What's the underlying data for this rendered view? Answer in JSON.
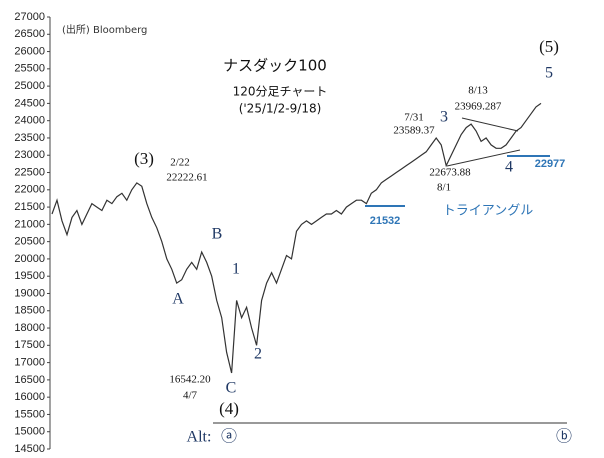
{
  "chart_data": {
    "type": "line",
    "title": "ナスダック100",
    "subtitle": "120分足チャート",
    "period": "('25/1/2-9/18)",
    "source": "(出所) Bloomberg",
    "color": "#333333",
    "values": [
      21300,
      21700,
      21100,
      20700,
      21200,
      21400,
      21000,
      21300,
      21600,
      21500,
      21400,
      21700,
      21600,
      21800,
      21900,
      21700,
      22000,
      22200,
      22100,
      21600,
      21200,
      20900,
      20500,
      20000,
      19700,
      19300,
      19400,
      19700,
      19900,
      19700,
      20200,
      19900,
      19500,
      18800,
      18300,
      17300,
      16700,
      18800,
      18300,
      18600,
      18000,
      17500,
      18800,
      19300,
      19600,
      19300,
      19700,
      20100,
      20000,
      20800,
      21000,
      21100,
      21000,
      21100,
      21200,
      21300,
      21300,
      21400,
      21300,
      21500,
      21600,
      21700,
      21700,
      21600,
      21900,
      22000,
      22200,
      22300,
      22400,
      22500,
      22600,
      22700,
      22800,
      22900,
      23000,
      23100,
      23300,
      23500,
      23300,
      22700,
      23000,
      23300,
      23600,
      23800,
      23900,
      23700,
      23400,
      23500,
      23300,
      23200,
      23200,
      23300,
      23500,
      23700,
      23800,
      24000,
      24200,
      24400,
      24500
    ],
    "ylim": [
      14500,
      27000
    ],
    "yticks": [
      14500,
      15000,
      15500,
      16000,
      16500,
      17000,
      17500,
      18000,
      18500,
      19000,
      19500,
      20000,
      20500,
      21000,
      21500,
      22000,
      22500,
      23000,
      23500,
      24000,
      24500,
      25000,
      25500,
      26000,
      26500,
      27000
    ],
    "levels": [
      21532,
      22977
    ],
    "annotations": [
      "(5)",
      "5",
      "8/13",
      "23969.287",
      "7/31",
      "23589.37",
      "3",
      "22673.88",
      "8/1",
      "4",
      "(3)",
      "2/22",
      "22222.61",
      "B",
      "A",
      "1",
      "2",
      "16542.20",
      "4/7",
      "C",
      "(4)",
      "Alt:",
      "ⓐ",
      "ⓑ",
      "トライアングル"
    ]
  }
}
